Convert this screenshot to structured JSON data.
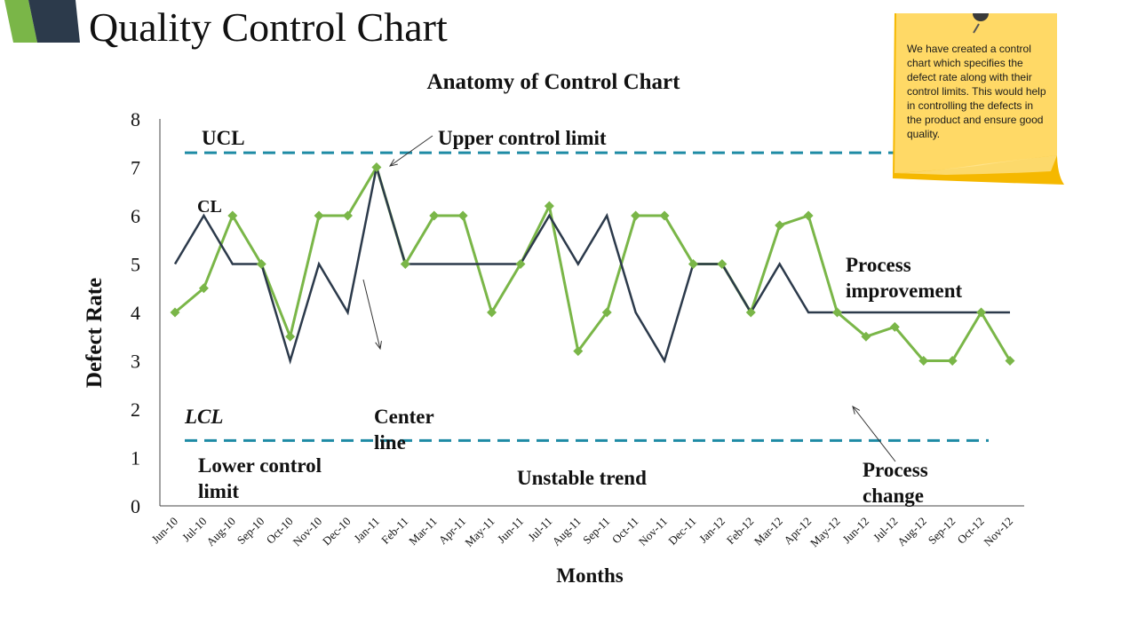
{
  "slide": {
    "title": "Quality Control Chart",
    "note": "We have created a control chart which specifies the defect rate along with their control limits. This would help in controlling the defects in the product and ensure good quality."
  },
  "colors": {
    "green": "#7ab648",
    "navy": "#2c3a4b",
    "teal": "#1e8ba5",
    "note_yellow": "#ffd966",
    "note_shadow": "#f5b800"
  },
  "chart_data": {
    "type": "line",
    "title": "Anatomy of Control Chart",
    "xlabel": "Months",
    "ylabel": "Defect Rate",
    "ylim": [
      0,
      8
    ],
    "yticks": [
      0,
      1,
      2,
      3,
      4,
      5,
      6,
      7,
      8
    ],
    "categories": [
      "Jun-10",
      "Jul-10",
      "Aug-10",
      "Sep-10",
      "Oct-10",
      "Nov-10",
      "Dec-10",
      "Jan-11",
      "Feb-11",
      "Mar-11",
      "Apr-11",
      "May-11",
      "Jun-11",
      "Jul-11",
      "Aug-11",
      "Sep-11",
      "Oct-11",
      "Nov-11",
      "Dec-11",
      "Jan-12",
      "Feb-12",
      "Mar-12",
      "Apr-12",
      "May-12",
      "Jun-12",
      "Jul-12",
      "Aug-12",
      "Sep-12",
      "Oct-12",
      "Nov-12"
    ],
    "series": [
      {
        "color": "#7ab648",
        "marker": "diamond",
        "values": [
          4,
          4.5,
          6,
          5,
          3.5,
          6,
          6,
          7,
          5,
          6,
          6,
          4,
          5,
          6.2,
          3.2,
          4,
          6,
          6,
          5,
          5,
          4,
          5.8,
          6,
          4,
          3.5,
          3.7,
          3,
          3,
          4,
          3
        ]
      },
      {
        "color": "#2c3a4b",
        "marker": "none",
        "values": [
          5,
          6,
          5,
          5,
          3,
          5,
          4,
          7,
          5,
          5,
          5,
          5,
          5,
          6,
          5,
          6,
          4,
          3,
          5,
          5,
          4,
          5,
          4,
          4,
          4,
          4,
          4,
          4,
          4,
          4
        ]
      }
    ],
    "reference_lines": [
      {
        "label": "UCL",
        "value": 7.3,
        "style": "dashed",
        "color": "#1e8ba5"
      },
      {
        "label": "LCL",
        "value": 1.35,
        "style": "dashed",
        "color": "#1e8ba5"
      }
    ],
    "annotations": [
      {
        "text": "UCL"
      },
      {
        "text": "CL"
      },
      {
        "text": "LCL",
        "italic": true
      },
      {
        "text": "Upper control limit"
      },
      {
        "text": "Center line"
      },
      {
        "text": "Lower control limit"
      },
      {
        "text": "Unstable trend"
      },
      {
        "text": "Process improvement"
      },
      {
        "text": "Process change"
      }
    ],
    "grid": false
  }
}
